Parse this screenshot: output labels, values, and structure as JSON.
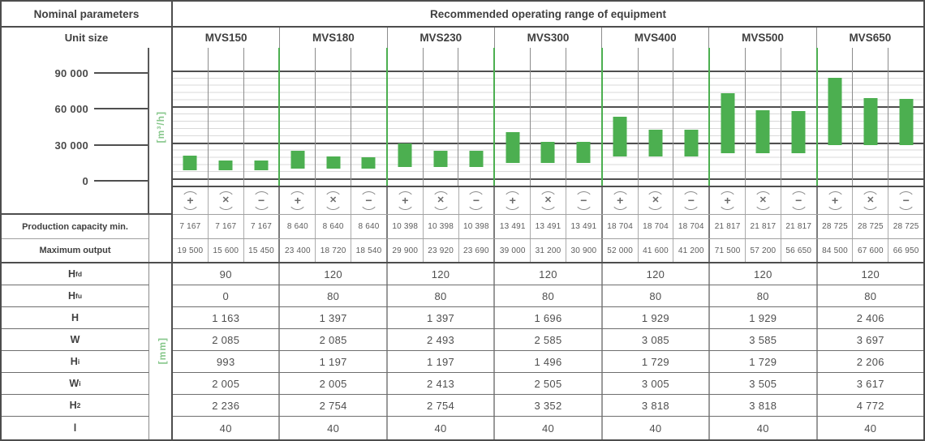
{
  "titles": {
    "nominal": "Nominal parameters",
    "recommended": "Recommended operating range of equipment",
    "unit_size": "Unit size"
  },
  "axis": {
    "unit": "[m³/h]",
    "ticks": [
      "90 000",
      "60 000",
      "30 000",
      "0"
    ]
  },
  "modes": [
    {
      "name": "plus-fan-icon",
      "glyph": "+"
    },
    {
      "name": "cross-fan-icon",
      "glyph": "✕"
    },
    {
      "name": "minus-fan-icon",
      "glyph": "−"
    }
  ],
  "row_labels": {
    "capacity_min": "Production capacity min.",
    "max_output": "Maximum output"
  },
  "units": [
    {
      "name": "MVS150",
      "capacity_min": [
        "7 167",
        "7 167",
        "7 167"
      ],
      "max_output": [
        "19 500",
        "15 600",
        "15 450"
      ]
    },
    {
      "name": "MVS180",
      "capacity_min": [
        "8 640",
        "8 640",
        "8 640"
      ],
      "max_output": [
        "23 400",
        "18 720",
        "18 540"
      ]
    },
    {
      "name": "MVS230",
      "capacity_min": [
        "10 398",
        "10 398",
        "10 398"
      ],
      "max_output": [
        "29 900",
        "23 920",
        "23 690"
      ]
    },
    {
      "name": "MVS300",
      "capacity_min": [
        "13 491",
        "13 491",
        "13 491"
      ],
      "max_output": [
        "39 000",
        "31 200",
        "30 900"
      ]
    },
    {
      "name": "MVS400",
      "capacity_min": [
        "18 704",
        "18 704",
        "18 704"
      ],
      "max_output": [
        "52 000",
        "41 600",
        "41 200"
      ]
    },
    {
      "name": "MVS500",
      "capacity_min": [
        "21 817",
        "21 817",
        "21 817"
      ],
      "max_output": [
        "71 500",
        "57 200",
        "56 650"
      ]
    },
    {
      "name": "MVS650",
      "capacity_min": [
        "28 725",
        "28 725",
        "28 725"
      ],
      "max_output": [
        "84 500",
        "67 600",
        "66 950"
      ]
    }
  ],
  "dimensions": {
    "unit": "[mm]",
    "rows": [
      {
        "label": "H",
        "sub": "fd",
        "values": [
          "90",
          "120",
          "120",
          "120",
          "120",
          "120",
          "120"
        ]
      },
      {
        "label": "H",
        "sub": "fu",
        "values": [
          "0",
          "80",
          "80",
          "80",
          "80",
          "80",
          "80"
        ]
      },
      {
        "label": "H",
        "sub": "",
        "values": [
          "1 163",
          "1 397",
          "1 397",
          "1 696",
          "1 929",
          "1 929",
          "2 406"
        ]
      },
      {
        "label": "W",
        "sub": "",
        "values": [
          "2 085",
          "2 085",
          "2 493",
          "2 585",
          "3 085",
          "3 585",
          "3 697"
        ]
      },
      {
        "label": "H",
        "sub": "i",
        "values": [
          "993",
          "1 197",
          "1 197",
          "1 496",
          "1 729",
          "1 729",
          "2 206"
        ]
      },
      {
        "label": "W",
        "sub": "i",
        "values": [
          "2 005",
          "2 005",
          "2 413",
          "2 505",
          "3 005",
          "3 505",
          "3 617"
        ]
      },
      {
        "label": "H",
        "sub": "2",
        "values": [
          "2 236",
          "2 754",
          "2 754",
          "3 352",
          "3 818",
          "3 818",
          "4 772"
        ]
      },
      {
        "label": "l",
        "sub": "",
        "values": [
          "40",
          "40",
          "40",
          "40",
          "40",
          "40",
          "40"
        ]
      }
    ]
  },
  "colors": {
    "green": "#4CAF50",
    "green_text": "#87C78B",
    "border_dark": "#4D4D4D",
    "border_mid": "#8C8C8C",
    "grid_light": "#D9D9D9",
    "text": "#3F3F3F",
    "text_value": "#5C5C5C"
  },
  "chart_data": {
    "type": "bar",
    "subtype": "floating-range-bars",
    "title": "Recommended operating range of equipment",
    "ylabel": "[m³/h]",
    "ylim": [
      0,
      90000
    ],
    "ytick_labels": [
      "0",
      "30 000",
      "60 000",
      "90 000"
    ],
    "minor_grid_step": 6000,
    "grid": true,
    "legend": "none",
    "categories": [
      "MVS150",
      "MVS180",
      "MVS230",
      "MVS300",
      "MVS400",
      "MVS500",
      "MVS650"
    ],
    "modes_per_category": [
      "plus",
      "cross",
      "minus"
    ],
    "ranges": [
      [
        [
          7167,
          19500
        ],
        [
          7167,
          15600
        ],
        [
          7167,
          15450
        ]
      ],
      [
        [
          8640,
          23400
        ],
        [
          8640,
          18720
        ],
        [
          8640,
          18540
        ]
      ],
      [
        [
          10398,
          29900
        ],
        [
          10398,
          23920
        ],
        [
          10398,
          23690
        ]
      ],
      [
        [
          13491,
          39000
        ],
        [
          13491,
          31200
        ],
        [
          13491,
          30900
        ]
      ],
      [
        [
          18704,
          52000
        ],
        [
          18704,
          41600
        ],
        [
          18704,
          41200
        ]
      ],
      [
        [
          21817,
          71500
        ],
        [
          21817,
          57200
        ],
        [
          21817,
          56650
        ]
      ],
      [
        [
          28725,
          84500
        ],
        [
          28725,
          67600
        ],
        [
          28725,
          66950
        ]
      ]
    ]
  }
}
